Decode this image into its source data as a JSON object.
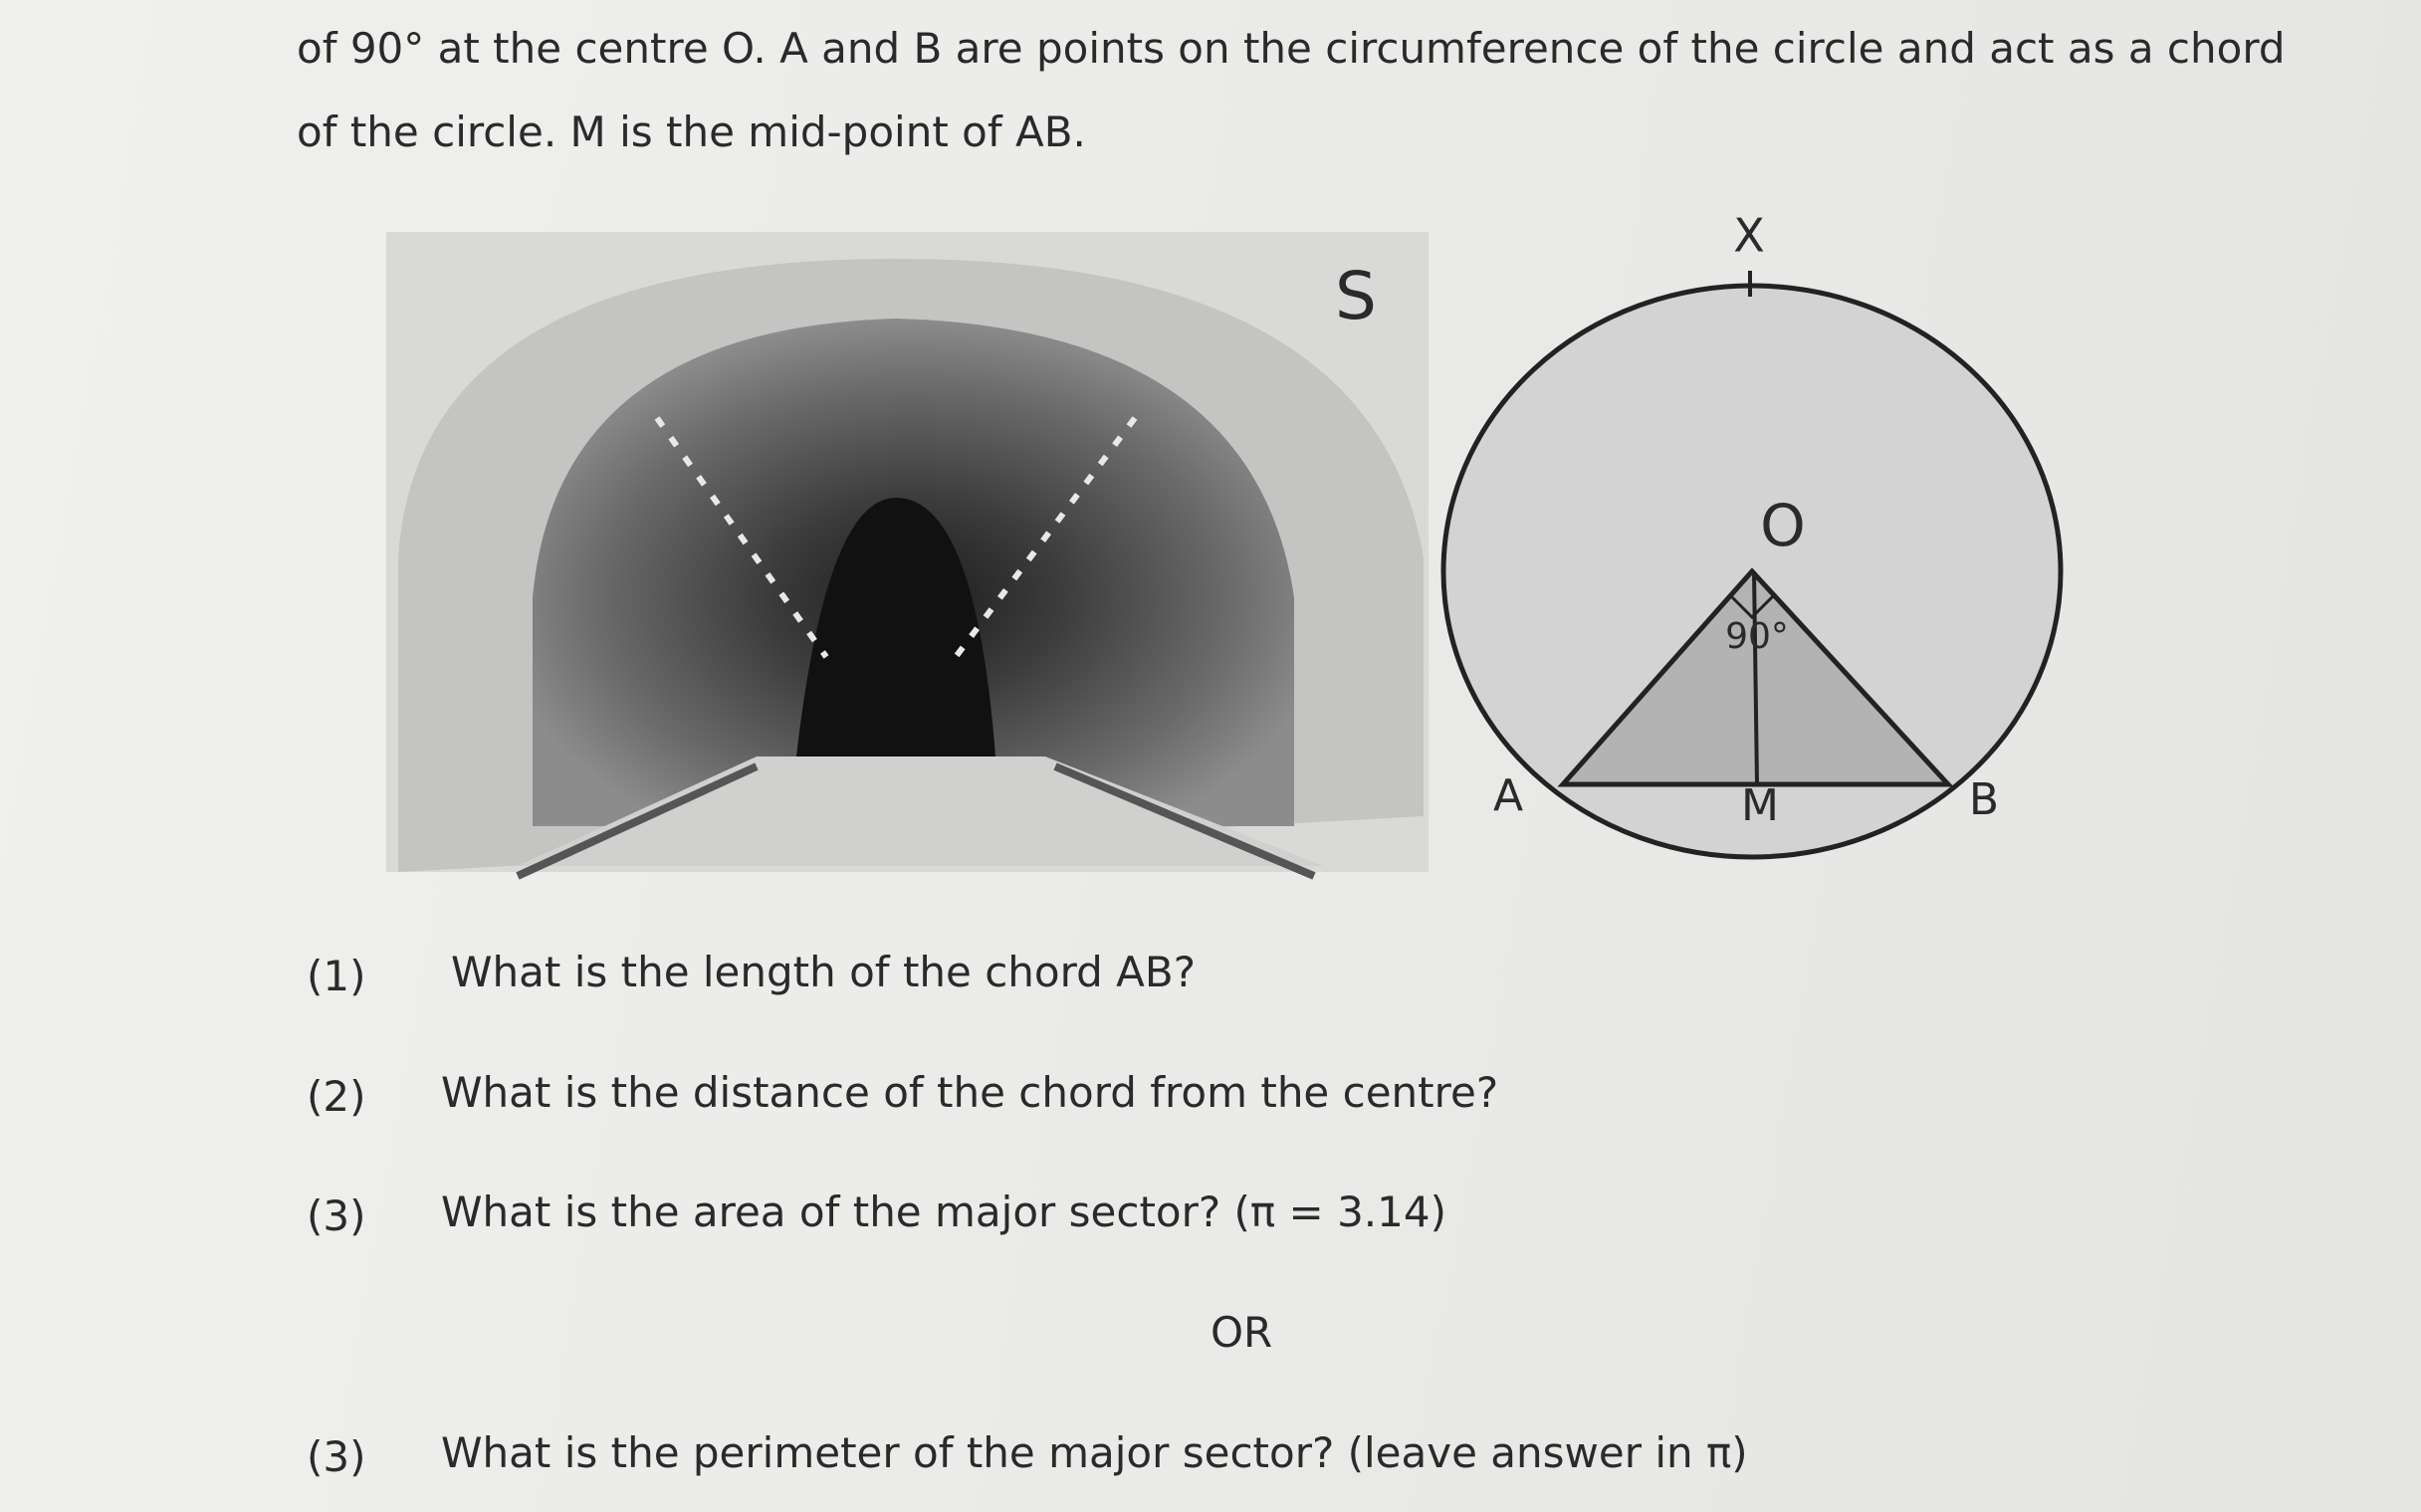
{
  "paragraph": {
    "lines": [
      "of 90° at the centre O. A and B are points on the circumference of the circle and act as a chord",
      "of the circle. M is the mid-point of AB."
    ]
  },
  "figure": {
    "photo_label": "S",
    "labels": {
      "x": "X",
      "o": "O",
      "angle": "90°",
      "a": "A",
      "m": "M",
      "b": "B"
    }
  },
  "questions": [
    {
      "number": "(1)",
      "text": "What is the length of the chord AB?"
    },
    {
      "number": "(2)",
      "text": "What is the distance of the chord from the centre?"
    },
    {
      "number": "(3)",
      "text": "What is the area of the major sector? (π = 3.14)"
    },
    {
      "separator": "OR"
    },
    {
      "number": "(3)",
      "text": "What is the perimeter of the major sector? (leave answer in π)"
    }
  ]
}
